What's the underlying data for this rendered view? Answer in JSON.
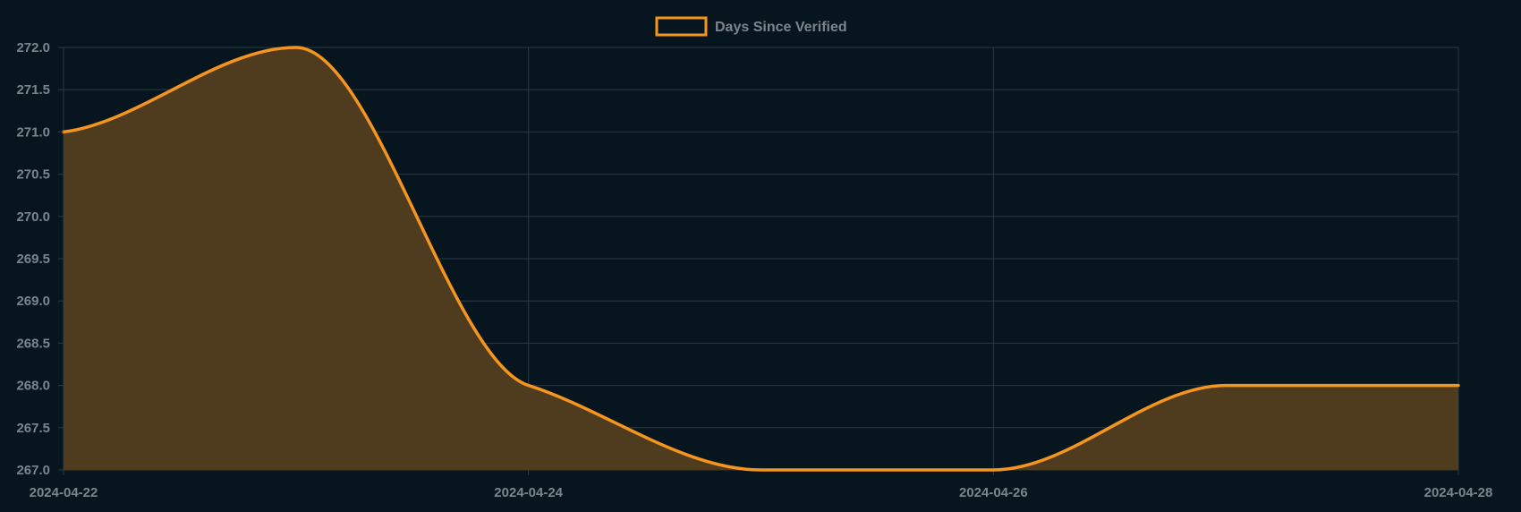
{
  "chart_data": {
    "type": "area",
    "x": [
      "2024-04-22",
      "2024-04-23",
      "2024-04-24",
      "2024-04-25",
      "2024-04-26",
      "2024-04-27",
      "2024-04-28"
    ],
    "series": [
      {
        "name": "Days Since Verified",
        "values": [
          271,
          272,
          268,
          267,
          267,
          268,
          268
        ],
        "color": "#f5951f",
        "fill": "#4f3c1e"
      }
    ],
    "ylim": [
      267,
      272
    ],
    "yticks": [
      "267.0",
      "267.5",
      "268.0",
      "268.5",
      "269.0",
      "269.5",
      "270.0",
      "270.5",
      "271.0",
      "271.5",
      "272.0"
    ],
    "xticks": [
      "2024-04-22",
      "2024-04-24",
      "2024-04-26",
      "2024-04-28"
    ],
    "grid": true,
    "legend": "top-center",
    "title": "",
    "xlabel": "",
    "ylabel": ""
  },
  "theme": {
    "background": "#07161e",
    "grid": "#2a3a42",
    "tick_text": "#7b858b"
  }
}
